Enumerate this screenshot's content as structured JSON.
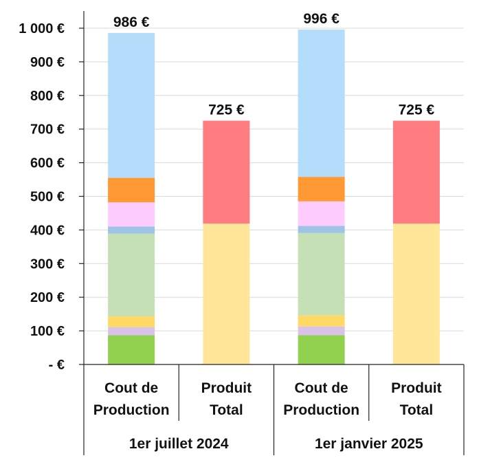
{
  "chart_data": {
    "type": "bar",
    "stacked": true,
    "ylim": [
      0,
      1000
    ],
    "yticks": [
      0,
      100,
      200,
      300,
      400,
      500,
      600,
      700,
      800,
      900,
      1000
    ],
    "ytick_labels": [
      "-  €",
      "100 €",
      "200 €",
      "300 €",
      "400 €",
      "500 €",
      "600 €",
      "700 €",
      "800 €",
      "900 €",
      "1 000 €"
    ],
    "grid": true,
    "groups": [
      "1er juillet 2024",
      "1er janvier 2025"
    ],
    "categories": [
      [
        "Cout de",
        "Production"
      ],
      [
        "Produit",
        "Total"
      ],
      [
        "Cout de",
        "Production"
      ],
      [
        "Produit",
        "Total"
      ]
    ],
    "totals": [
      "986 €",
      "725 €",
      "996 €",
      "725 €"
    ],
    "total_values": [
      986,
      725,
      996,
      725
    ],
    "segment_colors": [
      "#92d050",
      "#d9c3e9",
      "#ffd966",
      "#c5e0b4",
      "#9dc3e6",
      "#ffccff",
      "#ff9933",
      "#b4dcfb",
      "#ffe699",
      "#ff7c80"
    ],
    "bars": [
      {
        "segments": [
          {
            "value": 87,
            "color": "#92d050"
          },
          {
            "value": 24,
            "color": "#d9c3e9"
          },
          {
            "value": 32,
            "color": "#ffd966"
          },
          {
            "value": 246,
            "color": "#c5e0b4"
          },
          {
            "value": 21,
            "color": "#9dc3e6"
          },
          {
            "value": 72,
            "color": "#ffccff"
          },
          {
            "value": 73,
            "color": "#ff9933"
          },
          {
            "value": 431,
            "color": "#b4dcfb"
          }
        ]
      },
      {
        "segments": [
          {
            "value": 419,
            "color": "#ffe699"
          },
          {
            "value": 306,
            "color": "#ff7c80"
          }
        ]
      },
      {
        "segments": [
          {
            "value": 87,
            "color": "#92d050"
          },
          {
            "value": 26,
            "color": "#d9c3e9"
          },
          {
            "value": 33,
            "color": "#ffd966"
          },
          {
            "value": 245,
            "color": "#c5e0b4"
          },
          {
            "value": 21,
            "color": "#9dc3e6"
          },
          {
            "value": 73,
            "color": "#ffccff"
          },
          {
            "value": 73,
            "color": "#ff9933"
          },
          {
            "value": 438,
            "color": "#b4dcfb"
          }
        ]
      },
      {
        "segments": [
          {
            "value": 419,
            "color": "#ffe699"
          },
          {
            "value": 306,
            "color": "#ff7c80"
          }
        ]
      }
    ]
  }
}
